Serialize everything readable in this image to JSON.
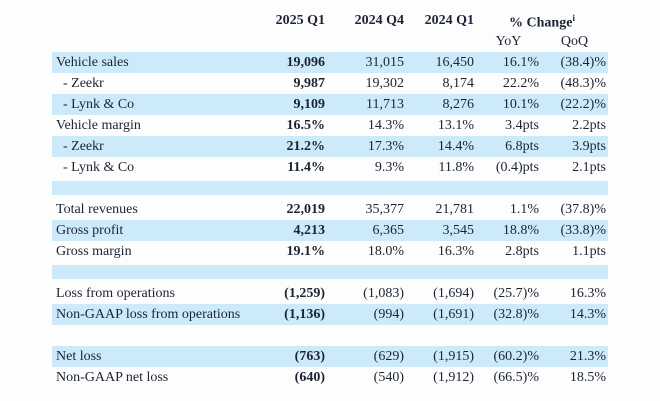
{
  "colors": {
    "row_highlight": "#cdeafb",
    "text": "#1b2433",
    "background": "#fdfdfd"
  },
  "table": {
    "header": {
      "col_2025_q1": "2025 Q1",
      "col_2024_q4": "2024 Q4",
      "col_2024_q1": "2024 Q1",
      "pct_change": "% Change",
      "pct_change_footnote": "i",
      "sub_yoy": "YoY",
      "sub_qoq": "QoQ"
    },
    "rows": [
      {
        "label": "Vehicle sales",
        "q1_2025": "19,096",
        "q4_2024": "31,015",
        "q1_2024": "16,450",
        "yoy": "16.1%",
        "qoq": "(38.4)%"
      },
      {
        "label": "- Zeekr",
        "q1_2025": "9,987",
        "q4_2024": "19,302",
        "q1_2024": "8,174",
        "yoy": "22.2%",
        "qoq": "(48.3)%"
      },
      {
        "label": "- Lynk & Co",
        "q1_2025": "9,109",
        "q4_2024": "11,713",
        "q1_2024": "8,276",
        "yoy": "10.1%",
        "qoq": "(22.2)%"
      },
      {
        "label": "Vehicle margin",
        "q1_2025": "16.5%",
        "q4_2024": "14.3%",
        "q1_2024": "13.1%",
        "yoy": "3.4pts",
        "qoq": "2.2pts"
      },
      {
        "label": "- Zeekr",
        "q1_2025": "21.2%",
        "q4_2024": "17.3%",
        "q1_2024": "14.4%",
        "yoy": "6.8pts",
        "qoq": "3.9pts"
      },
      {
        "label": "- Lynk & Co",
        "q1_2025": "11.4%",
        "q4_2024": "9.3%",
        "q1_2024": "11.8%",
        "yoy": "(0.4)pts",
        "qoq": "2.1pts"
      },
      {
        "label": "Total revenues",
        "q1_2025": "22,019",
        "q4_2024": "35,377",
        "q1_2024": "21,781",
        "yoy": "1.1%",
        "qoq": "(37.8)%"
      },
      {
        "label": "Gross profit",
        "q1_2025": "4,213",
        "q4_2024": "6,365",
        "q1_2024": "3,545",
        "yoy": "18.8%",
        "qoq": "(33.8)%"
      },
      {
        "label": "Gross margin",
        "q1_2025": "19.1%",
        "q4_2024": "18.0%",
        "q1_2024": "16.3%",
        "yoy": "2.8pts",
        "qoq": "1.1pts"
      },
      {
        "label": "Loss from operations",
        "q1_2025": "(1,259)",
        "q4_2024": "(1,083)",
        "q1_2024": "(1,694)",
        "yoy": "(25.7)%",
        "qoq": "16.3%"
      },
      {
        "label": "Non-GAAP loss from operations",
        "q1_2025": "(1,136)",
        "q4_2024": "(994)",
        "q1_2024": "(1,691)",
        "yoy": "(32.8)%",
        "qoq": "14.3%"
      },
      {
        "label": "Net loss",
        "q1_2025": "(763)",
        "q4_2024": "(629)",
        "q1_2024": "(1,915)",
        "yoy": "(60.2)%",
        "qoq": "21.3%"
      },
      {
        "label": "Non-GAAP net loss",
        "q1_2025": "(640)",
        "q4_2024": "(540)",
        "q1_2024": "(1,912)",
        "yoy": "(66.5)%",
        "qoq": "18.5%"
      }
    ]
  }
}
